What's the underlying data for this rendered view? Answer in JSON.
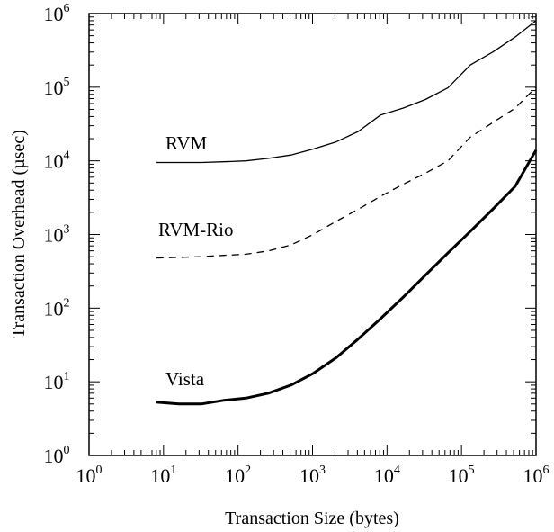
{
  "chart_data": {
    "type": "line",
    "xlabel": "Transaction Size (bytes)",
    "ylabel": "Transaction Overhead (µsec)",
    "x_scale": "log",
    "y_scale": "log",
    "xlim": [
      1,
      1000000
    ],
    "ylim": [
      1,
      1000000
    ],
    "grid": false,
    "x_ticks": [
      {
        "base": "10",
        "exp": "0"
      },
      {
        "base": "10",
        "exp": "1"
      },
      {
        "base": "10",
        "exp": "2"
      },
      {
        "base": "10",
        "exp": "3"
      },
      {
        "base": "10",
        "exp": "4"
      },
      {
        "base": "10",
        "exp": "5"
      },
      {
        "base": "10",
        "exp": "6"
      }
    ],
    "y_ticks": [
      {
        "base": "10",
        "exp": "0"
      },
      {
        "base": "10",
        "exp": "1"
      },
      {
        "base": "10",
        "exp": "2"
      },
      {
        "base": "10",
        "exp": "3"
      },
      {
        "base": "10",
        "exp": "4"
      },
      {
        "base": "10",
        "exp": "5"
      },
      {
        "base": "10",
        "exp": "6"
      }
    ],
    "series": [
      {
        "name": "RVM",
        "style": "solid-thin",
        "points": [
          [
            8,
            9500
          ],
          [
            16,
            9500
          ],
          [
            32,
            9500
          ],
          [
            64,
            9700
          ],
          [
            128,
            10000
          ],
          [
            256,
            10800
          ],
          [
            512,
            12000
          ],
          [
            1024,
            14500
          ],
          [
            2048,
            18000
          ],
          [
            4096,
            25000
          ],
          [
            8192,
            42000
          ],
          [
            16384,
            52000
          ],
          [
            32768,
            68000
          ],
          [
            65536,
            98000
          ],
          [
            131072,
            200000
          ],
          [
            262144,
            300000
          ],
          [
            524288,
            480000
          ],
          [
            1000000,
            800000
          ]
        ]
      },
      {
        "name": "RVM-Rio",
        "style": "dashed",
        "points": [
          [
            8,
            480
          ],
          [
            16,
            490
          ],
          [
            32,
            500
          ],
          [
            64,
            520
          ],
          [
            128,
            540
          ],
          [
            256,
            600
          ],
          [
            512,
            720
          ],
          [
            1024,
            1000
          ],
          [
            2048,
            1500
          ],
          [
            4096,
            2200
          ],
          [
            8192,
            3300
          ],
          [
            16384,
            4800
          ],
          [
            32768,
            6800
          ],
          [
            65536,
            10000
          ],
          [
            131072,
            21000
          ],
          [
            262144,
            33000
          ],
          [
            524288,
            52000
          ],
          [
            1000000,
            100000
          ]
        ]
      },
      {
        "name": "Vista",
        "style": "solid-thick",
        "points": [
          [
            8,
            5.3
          ],
          [
            16,
            5.0
          ],
          [
            32,
            5.0
          ],
          [
            64,
            5.6
          ],
          [
            128,
            6.0
          ],
          [
            256,
            7.0
          ],
          [
            512,
            9.0
          ],
          [
            1024,
            13
          ],
          [
            2048,
            21
          ],
          [
            4096,
            38
          ],
          [
            8192,
            72
          ],
          [
            16384,
            140
          ],
          [
            32768,
            280
          ],
          [
            65536,
            560
          ],
          [
            131072,
            1100
          ],
          [
            262144,
            2200
          ],
          [
            524288,
            4500
          ],
          [
            1000000,
            14000
          ]
        ]
      }
    ]
  }
}
